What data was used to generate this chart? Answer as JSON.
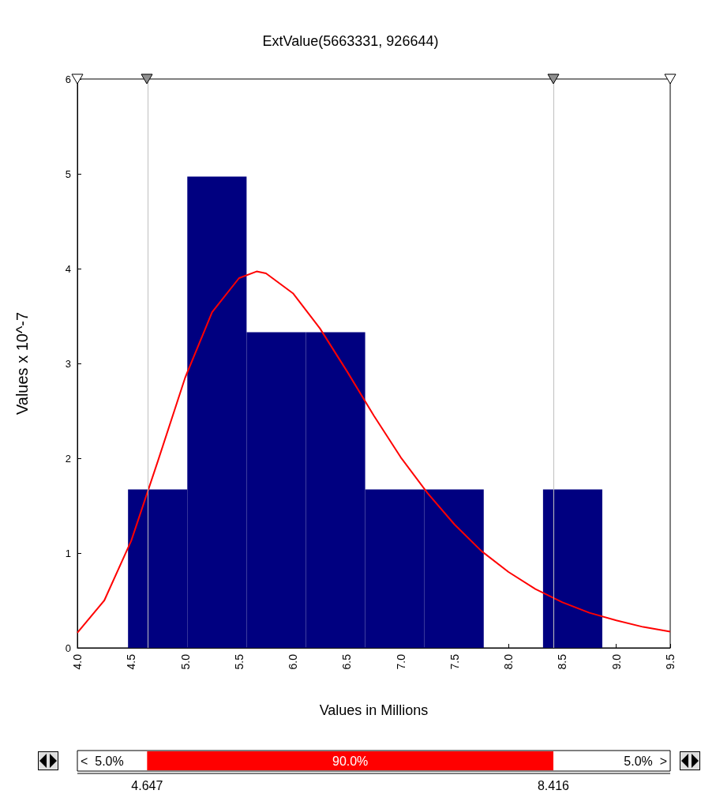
{
  "chart_data": {
    "type": "histogram",
    "title": "ExtValue(5663331, 926644)",
    "xlabel": "Values in Millions",
    "ylabel": "Values x 10^-7",
    "bins": [
      4.47,
      5.02,
      5.57,
      6.12,
      6.67,
      7.22,
      7.77,
      8.32,
      8.87
    ],
    "values": [
      1.67,
      4.97,
      3.33,
      3.33,
      1.67,
      1.67,
      0,
      1.67
    ],
    "color": "#000080",
    "xlim": [
      4,
      9.5
    ],
    "xticks": [
      {
        "value": 4,
        "label": "4.0"
      },
      4.5,
      {
        "value": 5,
        "label": "5.0"
      },
      5.5,
      {
        "value": 6,
        "label": "6.0"
      },
      6.5,
      {
        "value": 7,
        "label": "7.0"
      },
      7.5,
      {
        "value": 8,
        "label": "8.0"
      },
      8.5,
      {
        "value": 9,
        "label": "9.0"
      },
      9.5
    ],
    "ylim": [
      0,
      6
    ],
    "yticks": [
      0,
      1,
      2,
      3,
      4,
      5,
      6
    ],
    "grid": false,
    "series": [
      {
        "type": "line",
        "color": "#ff0000",
        "x": [
          4,
          4.25,
          4.5,
          4.75,
          5,
          5.25,
          5.5,
          5.663,
          5.75,
          6,
          6.25,
          6.5,
          6.75,
          7,
          7.25,
          7.5,
          7.75,
          8,
          8.25,
          8.5,
          8.75,
          9,
          9.25,
          9.5
        ],
        "values": [
          0.16,
          0.5,
          1.13,
          1.98,
          2.85,
          3.54,
          3.9,
          3.97,
          3.95,
          3.74,
          3.37,
          2.92,
          2.45,
          2.01,
          1.63,
          1.3,
          1.02,
          0.8,
          0.62,
          0.48,
          0.37,
          0.29,
          0.22,
          0.17
        ]
      }
    ],
    "ref_lines": [
      {
        "axis": "x",
        "value": 4.647,
        "color": "#c0c0c0"
      },
      {
        "axis": "x",
        "value": 8.416,
        "color": "#c0c0c0"
      }
    ],
    "annotations": [
      "<  5.0%",
      "90.0%",
      "5.0%  >",
      "4.647",
      "8.416"
    ]
  }
}
